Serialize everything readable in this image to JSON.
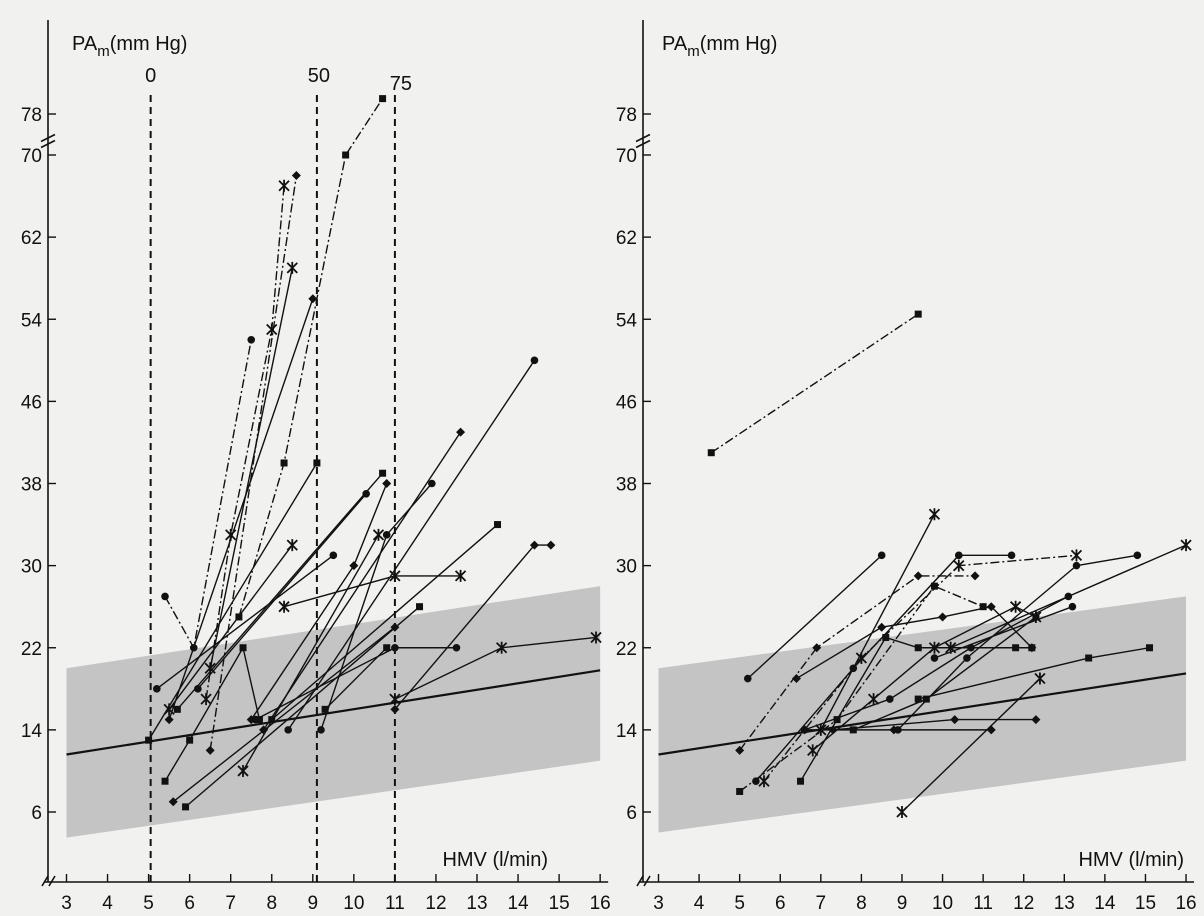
{
  "chart_data": [
    {
      "type": "line",
      "ylabel_base": "PA",
      "ylabel_sub": "m",
      "ylabel_unit": "(mm Hg)",
      "xlabel": "HMV (l/min)",
      "xlim": [
        3,
        16
      ],
      "xticks": [
        "3",
        "4",
        "5",
        "6",
        "7",
        "8",
        "9",
        "10",
        "11",
        "12",
        "13",
        "14",
        "15",
        "16"
      ],
      "yticks": [
        "6",
        "14",
        "22",
        "30",
        "38",
        "46",
        "54",
        "62",
        "70",
        "78"
      ],
      "y_break": "between 70 and 78",
      "grid": false,
      "normal_band": {
        "x": [
          3,
          16
        ],
        "lower": [
          3.5,
          11
        ],
        "upper": [
          20,
          28
        ],
        "color": "#c4c4c4"
      },
      "regression_line": {
        "x": [
          3,
          16
        ],
        "y": [
          11.6,
          19.8
        ]
      },
      "reference_lines": [
        {
          "label": "0",
          "x": 5.05
        },
        {
          "label": "50",
          "x": 9.1
        },
        {
          "label": "75",
          "x": 11.0
        }
      ],
      "series": [
        {
          "x": [
            5.0,
            9.1
          ],
          "y": [
            13,
            40
          ]
        },
        {
          "x": [
            5.2,
            9.5
          ],
          "y": [
            18,
            31
          ]
        },
        {
          "x": [
            5.5,
            8.5
          ],
          "y": [
            16,
            32
          ]
        },
        {
          "x": [
            5.5,
            9.0
          ],
          "y": [
            15,
            56
          ]
        },
        {
          "x": [
            5.7,
            10.7
          ],
          "y": [
            16,
            39
          ]
        },
        {
          "x": [
            6.2,
            10.3
          ],
          "y": [
            18,
            37
          ]
        },
        {
          "x": [
            6.5,
            8.5
          ],
          "y": [
            20,
            59
          ]
        },
        {
          "x": [
            7.8,
            12.6
          ],
          "y": [
            14,
            43
          ]
        },
        {
          "x": [
            8.0,
            13.5
          ],
          "y": [
            15,
            34
          ]
        },
        {
          "x": [
            8.4,
            14.4
          ],
          "y": [
            14,
            50
          ]
        },
        {
          "x": [
            8.3,
            11.0,
            12.6
          ],
          "y": [
            26,
            29,
            29
          ]
        },
        {
          "x": [
            7.5,
            10.0,
            10.8
          ],
          "y": [
            15,
            30,
            38
          ]
        },
        {
          "x": [
            9.3,
            10.8
          ],
          "y": [
            16,
            22
          ]
        },
        {
          "x": [
            9.2,
            10.8,
            11.9
          ],
          "y": [
            14,
            33,
            38
          ]
        },
        {
          "x": [
            7.3,
            10.6
          ],
          "y": [
            10,
            33
          ]
        },
        {
          "x": [
            5.6,
            11.0
          ],
          "y": [
            7,
            24
          ]
        },
        {
          "x": [
            5.9,
            11.6
          ],
          "y": [
            6.5,
            26
          ]
        },
        {
          "x": [
            7.6,
            11.0,
            12.5
          ],
          "y": [
            15,
            22,
            22
          ]
        },
        {
          "x": [
            11.0,
            13.6,
            15.9
          ],
          "y": [
            17,
            22,
            23
          ]
        },
        {
          "x": [
            11.0,
            14.4,
            14.8
          ],
          "y": [
            16,
            32,
            32
          ]
        },
        {
          "x": [
            5.4,
            6.0,
            7.3,
            7.7
          ],
          "y": [
            9,
            13,
            22,
            15
          ]
        },
        {
          "x": [
            5.4,
            6.1,
            7.5
          ],
          "y": [
            27,
            22,
            52
          ],
          "dash": "dashdot"
        },
        {
          "x": [
            6.4,
            7.0,
            8.0,
            8.3
          ],
          "y": [
            17,
            33,
            53,
            67
          ],
          "dash": "dashdot"
        },
        {
          "x": [
            6.5,
            8.6
          ],
          "y": [
            12,
            68
          ],
          "dash": "dashdot"
        },
        {
          "x": [
            7.2,
            8.3,
            9.8,
            10.7
          ],
          "y": [
            25,
            40,
            70,
            81
          ],
          "dash": "dashdot"
        }
      ]
    },
    {
      "type": "line",
      "ylabel_base": "PA",
      "ylabel_sub": "m",
      "ylabel_unit": "(mm Hg)",
      "xlabel": "HMV (l/min)",
      "xlim": [
        3,
        16
      ],
      "xticks": [
        "3",
        "4",
        "5",
        "6",
        "7",
        "8",
        "9",
        "10",
        "11",
        "12",
        "13",
        "14",
        "15",
        "16"
      ],
      "yticks": [
        "6",
        "14",
        "22",
        "30",
        "38",
        "46",
        "54",
        "62",
        "70",
        "78"
      ],
      "y_break": "between 70 and 78",
      "grid": false,
      "normal_band": {
        "x": [
          3,
          16
        ],
        "lower": [
          4,
          11
        ],
        "upper": [
          20,
          27
        ],
        "color": "#c4c4c4"
      },
      "regression_line": {
        "x": [
          3,
          16
        ],
        "y": [
          11.6,
          19.5
        ]
      },
      "series": [
        {
          "x": [
            4.3,
            9.4
          ],
          "y": [
            41,
            54.5
          ],
          "dash": "dashdot"
        },
        {
          "x": [
            5.2,
            8.5
          ],
          "y": [
            19,
            31
          ]
        },
        {
          "x": [
            7.0,
            9.8
          ],
          "y": [
            14,
            35
          ]
        },
        {
          "x": [
            5.0,
            6.9,
            9.4,
            10.8
          ],
          "y": [
            12,
            22,
            29,
            29
          ],
          "dash": "dashdot"
        },
        {
          "x": [
            5.0,
            7.4,
            9.8,
            11.0
          ],
          "y": [
            8,
            15,
            28,
            26
          ],
          "dash": "dashdot"
        },
        {
          "x": [
            5.4,
            7.8,
            10.4,
            11.7
          ],
          "y": [
            9,
            20,
            31,
            31
          ]
        },
        {
          "x": [
            5.6,
            8.0,
            10.4,
            13.3
          ],
          "y": [
            9,
            21,
            30,
            31
          ],
          "dash": "dashdot"
        },
        {
          "x": [
            6.4,
            8.5,
            10.0,
            11.2,
            12.2
          ],
          "y": [
            19,
            24,
            25,
            26,
            22
          ]
        },
        {
          "x": [
            6.5,
            8.6,
            9.4,
            11.8,
            12.2
          ],
          "y": [
            9,
            23,
            22,
            22,
            22
          ]
        },
        {
          "x": [
            6.6,
            8.7,
            10.7,
            13.1
          ],
          "y": [
            14,
            17,
            22,
            27
          ]
        },
        {
          "x": [
            6.8,
            8.3,
            9.8,
            11.8,
            12.3
          ],
          "y": [
            12,
            17,
            22,
            26,
            25
          ]
        },
        {
          "x": [
            6.6,
            8.8,
            11.2
          ],
          "y": [
            14,
            14,
            14
          ]
        },
        {
          "x": [
            7.8,
            9.6,
            12.3
          ],
          "y": [
            14,
            17,
            25
          ]
        },
        {
          "x": [
            8.9,
            10.6,
            13.3,
            14.8
          ],
          "y": [
            14,
            21,
            30,
            31
          ]
        },
        {
          "x": [
            9.0,
            12.4
          ],
          "y": [
            6,
            19
          ]
        },
        {
          "x": [
            7.3,
            10.3,
            12.3
          ],
          "y": [
            14,
            15,
            15
          ]
        },
        {
          "x": [
            9.4,
            13.6,
            15.1
          ],
          "y": [
            17,
            21,
            22
          ]
        },
        {
          "x": [
            9.8,
            13.2
          ],
          "y": [
            21,
            26
          ]
        },
        {
          "x": [
            10.2,
            16.0
          ],
          "y": [
            22,
            32
          ]
        }
      ]
    }
  ]
}
